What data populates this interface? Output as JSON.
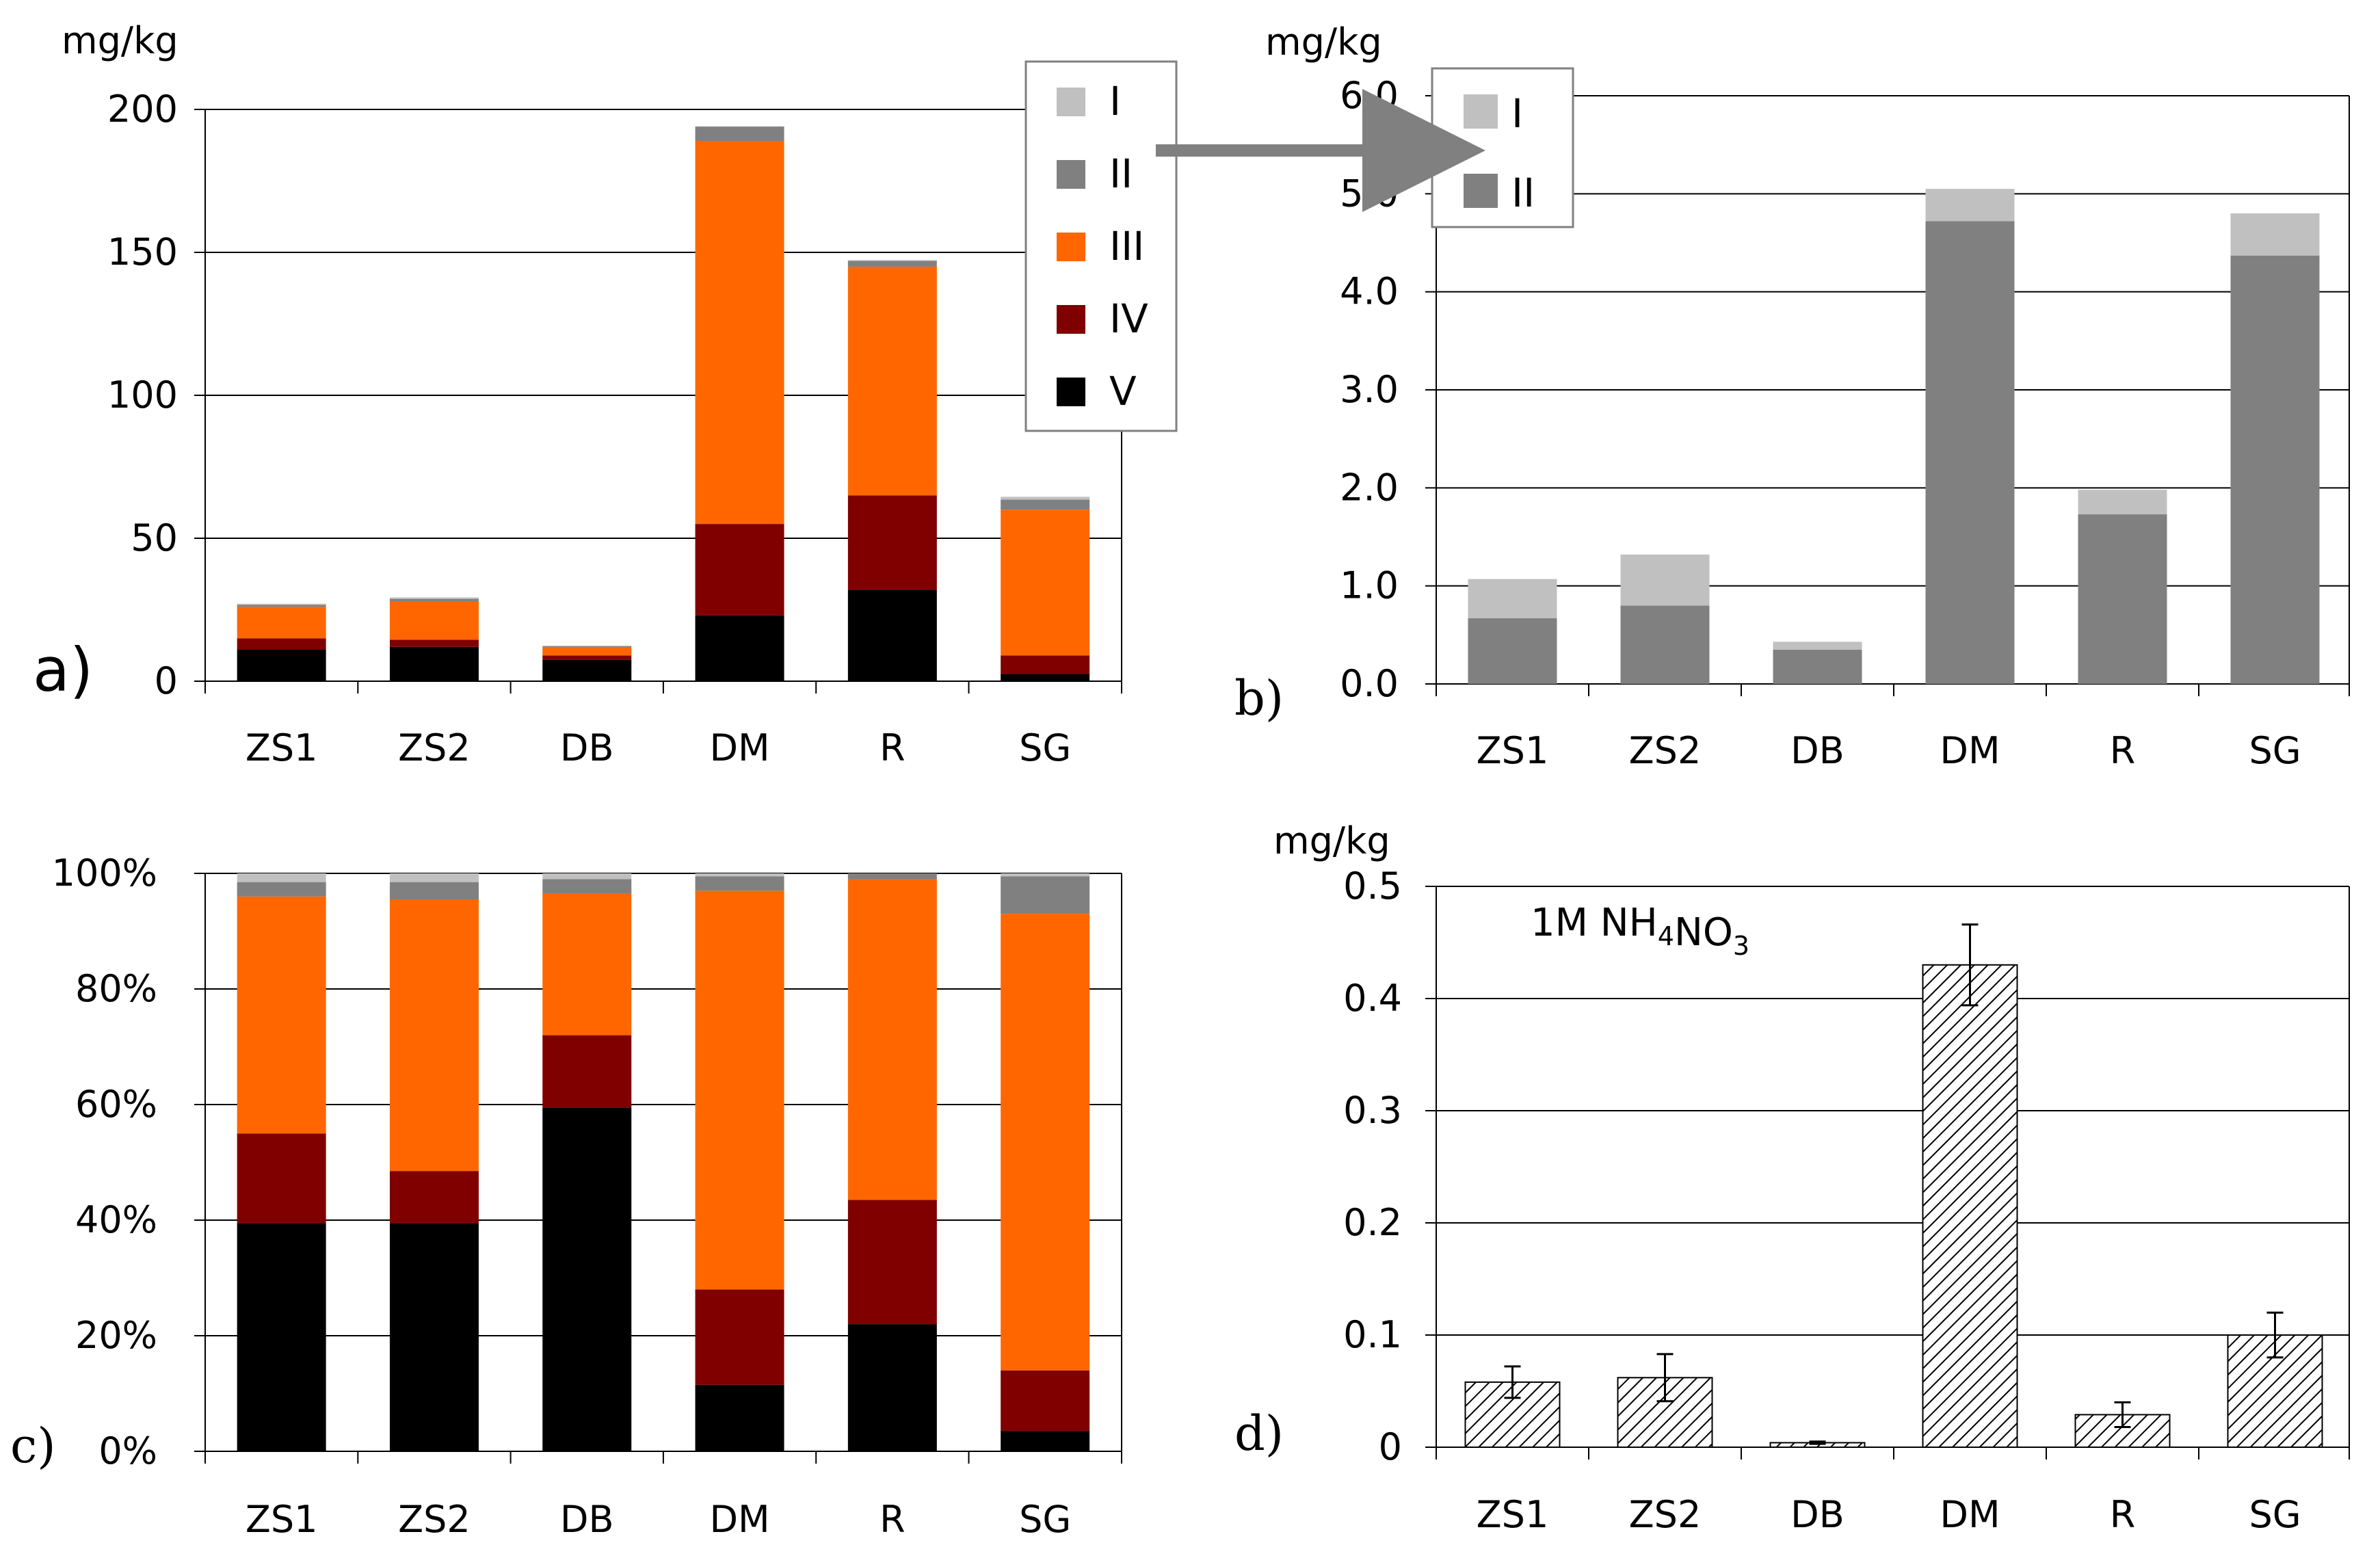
{
  "colors": {
    "I": "#c0c0c0",
    "II": "#808080",
    "III": "#ff6600",
    "IV": "#800000",
    "V": "#000000",
    "hatch_fill": "#ffffff",
    "hatch_stroke": "#000000",
    "arrow": "#808080",
    "grid": "#000000"
  },
  "chart_data": [
    {
      "id": "a",
      "panel_label": "a)",
      "type": "bar",
      "stacked": true,
      "ylabel": "mg/kg",
      "ylim": [
        0,
        200
      ],
      "yticks": [
        0,
        50,
        100,
        150,
        200
      ],
      "ytick_labels": [
        "0",
        "50",
        "100",
        "150",
        "200"
      ],
      "grid": true,
      "categories": [
        "ZS1",
        "ZS2",
        "DB",
        "DM",
        "R",
        "SG"
      ],
      "legend": {
        "position": "top-right",
        "entries": [
          "I",
          "II",
          "III",
          "IV",
          "V"
        ]
      },
      "series": [
        {
          "name": "V",
          "values": [
            11,
            12,
            7.5,
            23,
            32,
            2.5
          ]
        },
        {
          "name": "IV",
          "values": [
            4,
            2.5,
            1.5,
            32,
            33,
            6.5
          ]
        },
        {
          "name": "III",
          "values": [
            11,
            13.5,
            3,
            134,
            80,
            51
          ]
        },
        {
          "name": "II",
          "values": [
            0.7,
            0.8,
            0.3,
            5,
            2,
            3.5
          ]
        },
        {
          "name": "I",
          "values": [
            0.4,
            0.5,
            0.1,
            0.1,
            0.3,
            1
          ]
        }
      ]
    },
    {
      "id": "b",
      "panel_label": "b)",
      "type": "bar",
      "stacked": true,
      "ylabel": "mg/kg",
      "ylim": [
        0,
        6
      ],
      "yticks": [
        0,
        1,
        2,
        3,
        4,
        5,
        6
      ],
      "ytick_labels": [
        "0.0",
        "1.0",
        "2.0",
        "3.0",
        "4.0",
        "5.0",
        "6.0"
      ],
      "grid": true,
      "categories": [
        "ZS1",
        "ZS2",
        "DB",
        "DM",
        "R",
        "SG"
      ],
      "legend": {
        "position": "top-left",
        "entries": [
          "I",
          "II"
        ]
      },
      "series": [
        {
          "name": "II",
          "values": [
            0.67,
            0.8,
            0.35,
            4.72,
            1.73,
            4.37
          ]
        },
        {
          "name": "I",
          "values": [
            0.4,
            0.52,
            0.08,
            0.33,
            0.25,
            0.43
          ]
        }
      ]
    },
    {
      "id": "c",
      "panel_label": "c)",
      "type": "bar",
      "stacked": true,
      "ylabel": "",
      "ylim": [
        0,
        100
      ],
      "yticks": [
        0,
        20,
        40,
        60,
        80,
        100
      ],
      "ytick_labels": [
        "0%",
        "20%",
        "40%",
        "60%",
        "80%",
        "100%"
      ],
      "grid": true,
      "categories": [
        "ZS1",
        "ZS2",
        "DB",
        "DM",
        "R",
        "SG"
      ],
      "series": [
        {
          "name": "V",
          "values": [
            39.5,
            39.5,
            59.5,
            11.5,
            22,
            3.5
          ]
        },
        {
          "name": "IV",
          "values": [
            15.5,
            9,
            12.5,
            16.5,
            21.5,
            10.5
          ]
        },
        {
          "name": "III",
          "values": [
            41,
            47,
            24.5,
            69,
            55.5,
            79
          ]
        },
        {
          "name": "II",
          "values": [
            2.5,
            3,
            2.5,
            2.5,
            1,
            6.5
          ]
        },
        {
          "name": "I",
          "values": [
            1.5,
            1.5,
            1,
            0.5,
            0,
            0.5
          ]
        }
      ]
    },
    {
      "id": "d",
      "panel_label": "d)",
      "type": "bar",
      "stacked": false,
      "ylabel": "mg/kg",
      "ylim": [
        0,
        0.5
      ],
      "yticks": [
        0,
        0.1,
        0.2,
        0.3,
        0.4,
        0.5
      ],
      "ytick_labels": [
        "0",
        "0.1",
        "0.2",
        "0.3",
        "0.4",
        "0.5"
      ],
      "grid": true,
      "categories": [
        "ZS1",
        "ZS2",
        "DB",
        "DM",
        "R",
        "SG"
      ],
      "annotation": {
        "main": "1M NH",
        "sub1": "4",
        "mid": "NO",
        "sub2": "3"
      },
      "series": [
        {
          "name": "1M NH4NO3",
          "values": [
            0.058,
            0.062,
            0.004,
            0.43,
            0.029,
            0.1
          ],
          "errors": [
            0.014,
            0.021,
            0.001,
            0.036,
            0.011,
            0.02
          ]
        }
      ]
    }
  ]
}
